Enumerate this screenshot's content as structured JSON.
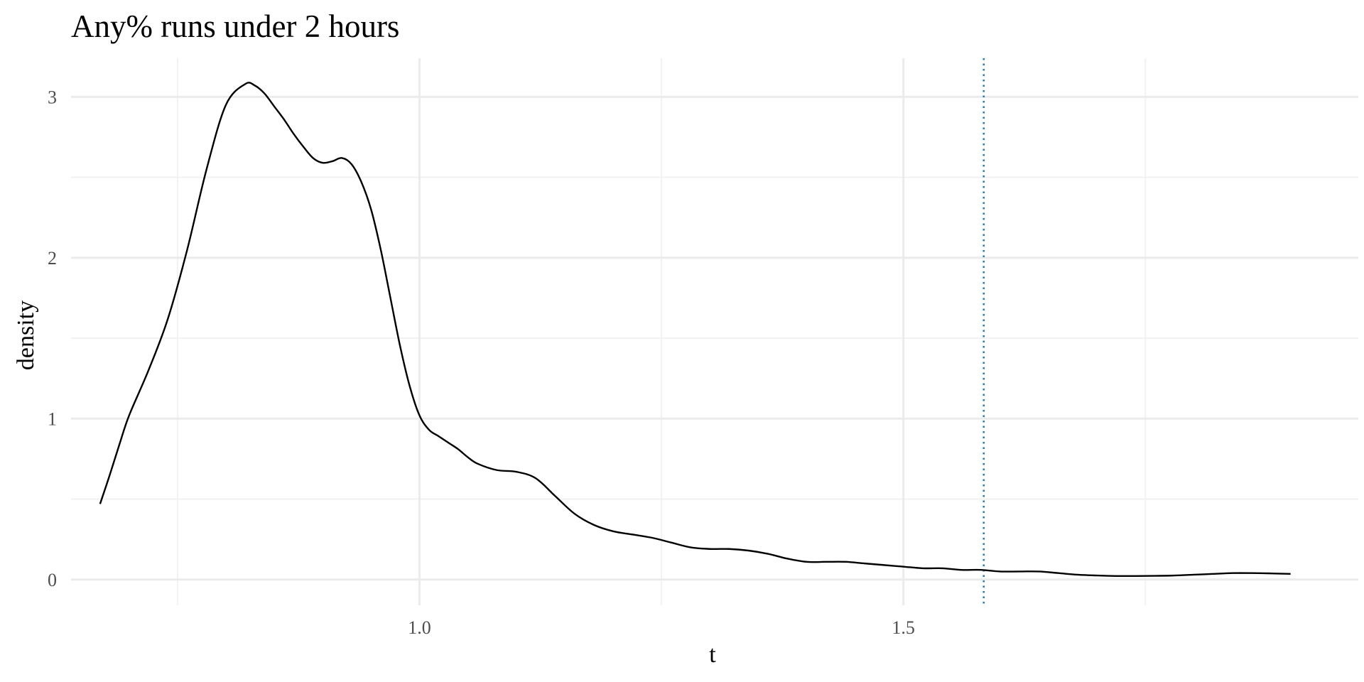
{
  "chart_data": {
    "type": "line",
    "title": "Any% runs under 2 hours",
    "xlabel": "t",
    "ylabel": "density",
    "xlim": [
      0.64,
      1.97
    ],
    "ylim": [
      -0.16,
      3.24
    ],
    "x_ticks": [
      {
        "value": 1.0,
        "label": "1.0"
      },
      {
        "value": 1.5,
        "label": "1.5"
      }
    ],
    "x_minor_ticks": [
      0.75,
      1.25,
      1.75
    ],
    "y_ticks": [
      {
        "value": 0,
        "label": "0"
      },
      {
        "value": 1,
        "label": "1"
      },
      {
        "value": 2,
        "label": "2"
      },
      {
        "value": 3,
        "label": "3"
      }
    ],
    "y_minor_ticks": [
      0.5,
      1.5,
      2.5
    ],
    "grid": true,
    "legend": "none",
    "series": [
      {
        "color": "#000000",
        "x": [
          0.67,
          0.68,
          0.69,
          0.7,
          0.72,
          0.74,
          0.76,
          0.78,
          0.8,
          0.82,
          0.83,
          0.84,
          0.85,
          0.86,
          0.87,
          0.88,
          0.89,
          0.9,
          0.91,
          0.92,
          0.93,
          0.94,
          0.95,
          0.96,
          0.97,
          0.98,
          0.99,
          1.0,
          1.01,
          1.02,
          1.03,
          1.04,
          1.05,
          1.06,
          1.08,
          1.1,
          1.12,
          1.14,
          1.16,
          1.18,
          1.2,
          1.22,
          1.24,
          1.26,
          1.28,
          1.3,
          1.32,
          1.34,
          1.36,
          1.38,
          1.4,
          1.42,
          1.44,
          1.46,
          1.48,
          1.5,
          1.52,
          1.54,
          1.56,
          1.58,
          1.6,
          1.62,
          1.64,
          1.66,
          1.68,
          1.7,
          1.72,
          1.74,
          1.76,
          1.78,
          1.8,
          1.82,
          1.84,
          1.86,
          1.88,
          1.9
        ],
        "y": [
          0.47,
          0.65,
          0.84,
          1.02,
          1.3,
          1.62,
          2.05,
          2.55,
          2.95,
          3.08,
          3.07,
          3.02,
          2.94,
          2.86,
          2.77,
          2.69,
          2.62,
          2.59,
          2.6,
          2.62,
          2.58,
          2.47,
          2.3,
          2.05,
          1.75,
          1.45,
          1.2,
          1.02,
          0.93,
          0.89,
          0.85,
          0.81,
          0.76,
          0.72,
          0.68,
          0.67,
          0.63,
          0.52,
          0.41,
          0.34,
          0.3,
          0.28,
          0.26,
          0.23,
          0.2,
          0.19,
          0.19,
          0.18,
          0.16,
          0.13,
          0.11,
          0.11,
          0.11,
          0.1,
          0.09,
          0.08,
          0.07,
          0.07,
          0.06,
          0.06,
          0.05,
          0.05,
          0.05,
          0.04,
          0.03,
          0.025,
          0.022,
          0.022,
          0.023,
          0.025,
          0.03,
          0.035,
          0.04,
          0.04,
          0.038,
          0.035
        ]
      }
    ],
    "reference_lines": [
      {
        "axis": "x",
        "value": 1.583,
        "style": "dotted",
        "color": "#2a7ab0"
      }
    ]
  }
}
